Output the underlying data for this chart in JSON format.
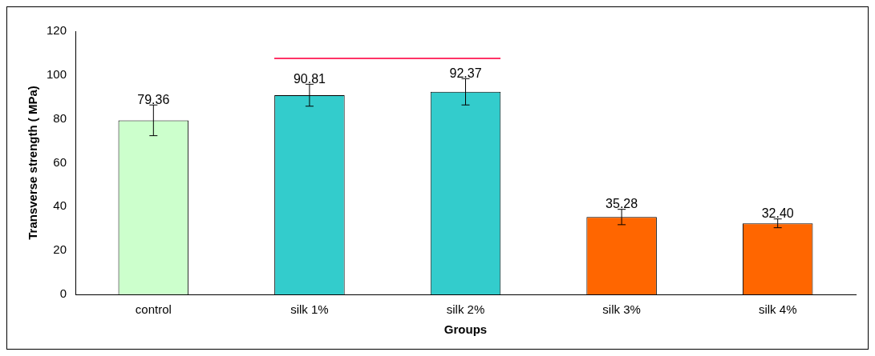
{
  "chart_data": {
    "type": "bar",
    "xlabel": "Groups",
    "ylabel": "Transverse strength ( MPa)",
    "categories": [
      "control",
      "silk 1%",
      "silk 2%",
      "silk 3%",
      "silk 4%"
    ],
    "values": [
      79.36,
      90.81,
      92.37,
      35.28,
      32.4
    ],
    "colors": [
      "#ccffcc",
      "#33cccc",
      "#33cccc",
      "#ff6600",
      "#ff6600"
    ],
    "errors": [
      7,
      5,
      6,
      3.5,
      2
    ],
    "value_labels": [
      "79.36",
      "90.81",
      "92.37",
      "35.28",
      "32.40"
    ],
    "ylim": [
      0,
      120
    ],
    "yticks": [
      0,
      20,
      40,
      60,
      80,
      100,
      120
    ],
    "grid": false,
    "legend": false
  }
}
